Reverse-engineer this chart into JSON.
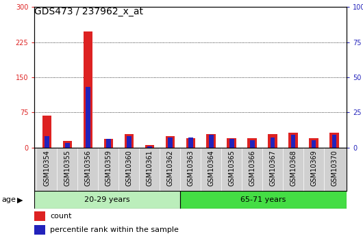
{
  "title": "GDS473 / 237962_x_at",
  "samples": [
    "GSM10354",
    "GSM10355",
    "GSM10356",
    "GSM10359",
    "GSM10360",
    "GSM10361",
    "GSM10362",
    "GSM10363",
    "GSM10364",
    "GSM10365",
    "GSM10366",
    "GSM10367",
    "GSM10368",
    "GSM10369",
    "GSM10370"
  ],
  "count_values": [
    68,
    14,
    248,
    18,
    28,
    5,
    25,
    20,
    28,
    20,
    20,
    28,
    32,
    20,
    32
  ],
  "percentile_values": [
    8,
    3,
    43,
    6,
    8,
    1,
    7,
    7,
    9,
    6,
    5,
    7,
    9,
    5,
    9
  ],
  "n_group1": 7,
  "n_group2": 8,
  "group1_label": "20-29 years",
  "group2_label": "65-71 years",
  "age_label": "age",
  "ylim_left": [
    0,
    300
  ],
  "ylim_right": [
    0,
    100
  ],
  "yticks_left": [
    0,
    75,
    150,
    225,
    300
  ],
  "yticks_right": [
    0,
    25,
    50,
    75,
    100
  ],
  "count_color": "#dd2222",
  "percentile_color": "#2222bb",
  "group1_bg": "#bbeebb",
  "group2_bg": "#44dd44",
  "xticklabel_bg": "#d0d0d0",
  "legend_count": "count",
  "legend_percentile": "percentile rank within the sample",
  "title_fontsize": 10,
  "tick_fontsize": 7,
  "bar_fontsize": 8
}
